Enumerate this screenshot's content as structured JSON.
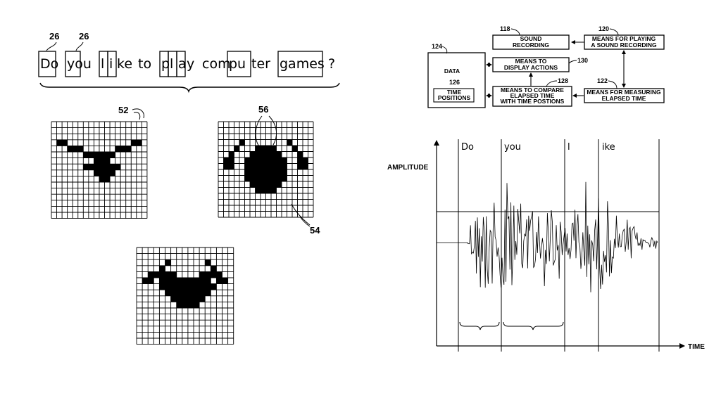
{
  "sentence": {
    "ref_left": "26",
    "ref_right": "26",
    "tokens": [
      "Do",
      "you",
      "l",
      "i",
      "ke",
      "to",
      "p",
      "l",
      "a",
      "y",
      "com",
      "pu",
      "ter",
      "games",
      "?"
    ]
  },
  "grids": {
    "ref_top": "52",
    "ref_mid": "56",
    "ref_bottom": "54",
    "faces": [
      {
        "name": "face-1",
        "rows": [
          "000000000000000000",
          "000000000000000000",
          "000000000000000000",
          "011000000000000110",
          "000111000000111000",
          "000000111111000000",
          "000000001110000000",
          "000000111111100000",
          "000000001111000000",
          "000000000110000000",
          "000000000000000000",
          "000000000000000000",
          "000000000000000000",
          "000000000000000000",
          "000000000000000000",
          "000000000000000000"
        ]
      },
      {
        "name": "face-2",
        "rows": [
          "000000000000000000",
          "000000000000000000",
          "000000000000000000",
          "000010000000010000",
          "000100011110001000",
          "001000111111000100",
          "011001111111100110",
          "011001111111100110",
          "000001111111100000",
          "000001111111100000",
          "000000111111000000",
          "000000011110000000",
          "000000000000000000",
          "000000000000000000",
          "000000000000000000",
          "000000000000000000"
        ]
      },
      {
        "name": "face-3",
        "rows": [
          "00000000000000000",
          "00000000000000000",
          "00000100000010000",
          "00001000000001000",
          "00111110000111100",
          "01101111111110110",
          "00001111111111000",
          "00000111111110000",
          "00000011111100000",
          "00000001111000000",
          "00000000000000000",
          "00000000000000000",
          "00000000000000000",
          "00000000000000000",
          "00000000000000000",
          "00000000000000000"
        ]
      }
    ]
  },
  "block_diagram": {
    "data_ref": "124",
    "data_label": "DATA",
    "time_ref": "126",
    "time_label": [
      "TIME",
      "POSITIONS"
    ],
    "sound_ref": "118",
    "sound_label": [
      "SOUND",
      "RECORDING"
    ],
    "play_ref": "120",
    "play_label": [
      "MEANS FOR PLAYING",
      "A SOUND RECORDING"
    ],
    "display_ref": "130",
    "display_label": [
      "MEANS TO",
      "DISPLAY ACTIONS"
    ],
    "compare_ref": "128",
    "compare_label": [
      "MEANS TO COMPARE",
      "ELAPSED TIME",
      "WITH TIME POSTIONS"
    ],
    "measure_ref": "122",
    "measure_label": [
      "MEANS FOR MEASURING",
      "ELAPSED TIME"
    ]
  },
  "waveform": {
    "ylabel": "AMPLITUDE",
    "xlabel": "TIME",
    "words": [
      "Do",
      "you",
      "l",
      "ike"
    ]
  }
}
